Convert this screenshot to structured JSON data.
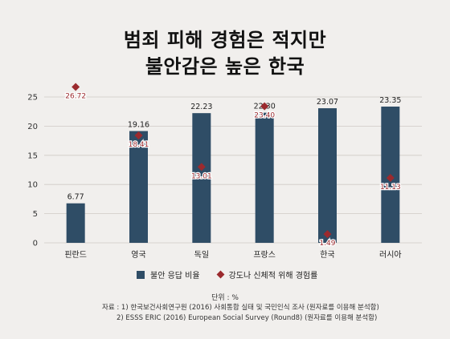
{
  "title_line1": "범죄 피해 경험은 적지만",
  "title_line2": "불안감은 높은 한국",
  "unit": "단위 : %",
  "sources": [
    "자료 : 1) 한국보건사회연구원 (2016) 사회통합 실태 및 국민인식 조사 (원자료를 이용해 분석함)",
    "2) ESSS ERIC (2016) European Social Survey (Round8) (원자료를 이용해 분석함)"
  ],
  "chart_data": {
    "type": "bar",
    "categories": [
      "핀란드",
      "영국",
      "독일",
      "프랑스",
      "한국",
      "러시아"
    ],
    "series": [
      {
        "name": "불안 응답 비율",
        "type": "bar",
        "color": "#2f4d66",
        "values": [
          6.77,
          19.16,
          22.23,
          22.3,
          23.07,
          23.35
        ],
        "labels": [
          "6.77",
          "19.16",
          "22.23",
          "22.30",
          "23.07",
          "23.35"
        ]
      },
      {
        "name": "강도나 신체적 위해 경험률",
        "type": "scatter",
        "marker": "diamond",
        "color": "#9b2a2e",
        "values": [
          26.72,
          18.41,
          13.01,
          23.4,
          1.49,
          11.13
        ],
        "labels": [
          "26.72",
          "18.41",
          "13.01",
          "23.40",
          "1.49",
          "11.13"
        ]
      }
    ],
    "yticks": [
      "0",
      "5",
      "10",
      "15",
      "20",
      "25"
    ],
    "ylim": [
      0,
      25
    ],
    "grid": true,
    "legend_position": "bottom"
  }
}
